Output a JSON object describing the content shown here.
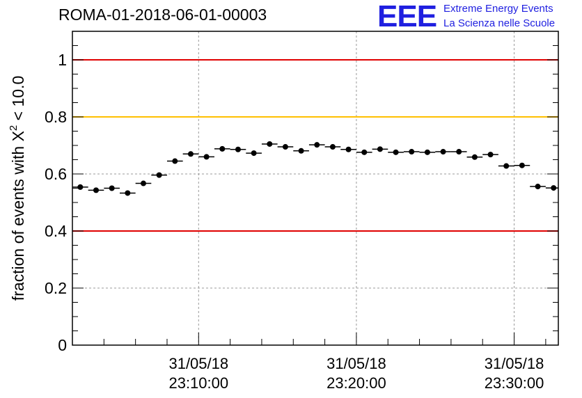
{
  "title": "ROMA-01-2018-06-01-00003",
  "logo": {
    "mark": "EEE",
    "line1": "Extreme Energy Events",
    "line2": "La Scienza nelle Scuole",
    "color": "#1f1fe0"
  },
  "chart_data": {
    "type": "scatter",
    "title": "ROMA-01-2018-06-01-00003",
    "xlabel": "",
    "ylabel_prefix": "fraction of events with ",
    "ylabel_symbol": "X",
    "ylabel_sup": "2",
    "ylabel_suffix": " < 10.0",
    "ylim": [
      0,
      1.1
    ],
    "yticks": [
      0,
      0.2,
      0.4,
      0.6,
      0.8,
      1
    ],
    "ytick_labels": [
      "0",
      "0.2",
      "0.4",
      "0.6",
      "0.8",
      "1"
    ],
    "xlim_minutes": [
      0,
      30.8
    ],
    "xticks_minutes": [
      8,
      18,
      28
    ],
    "xtick_labels": [
      [
        "31/05/18",
        "23:10:00"
      ],
      [
        "31/05/18",
        "23:20:00"
      ],
      [
        "31/05/18",
        "23:30:00"
      ]
    ],
    "grid": true,
    "bin_width_minutes": 1,
    "x_minutes": [
      0.5,
      1.5,
      2.5,
      3.5,
      4.5,
      5.5,
      6.5,
      7.5,
      8.5,
      9.5,
      10.5,
      11.5,
      12.5,
      13.5,
      14.5,
      15.5,
      16.5,
      17.5,
      18.5,
      19.5,
      20.5,
      21.5,
      22.5,
      23.5,
      24.5,
      25.5,
      26.5,
      27.5,
      28.5,
      29.5,
      30.5
    ],
    "values": [
      0.554,
      0.543,
      0.55,
      0.533,
      0.567,
      0.596,
      0.645,
      0.67,
      0.66,
      0.688,
      0.686,
      0.673,
      0.705,
      0.695,
      0.681,
      0.702,
      0.695,
      0.686,
      0.676,
      0.687,
      0.676,
      0.678,
      0.676,
      0.678,
      0.678,
      0.659,
      0.668,
      0.628,
      0.63,
      0.556,
      0.551
    ],
    "errors": 0.008,
    "reference_lines": [
      {
        "y": 1.0,
        "color": "#e00000"
      },
      {
        "y": 0.8,
        "color": "#ffc000"
      },
      {
        "y": 0.4,
        "color": "#e00000"
      }
    ]
  }
}
